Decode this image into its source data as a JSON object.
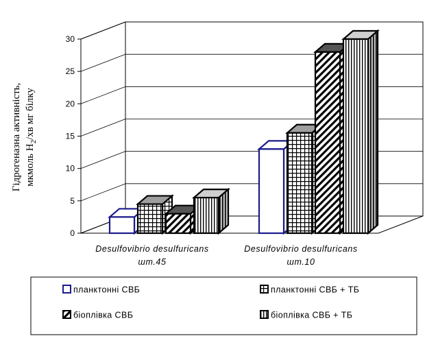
{
  "chart_data": {
    "type": "bar",
    "style": "3d-clustered-column",
    "categories": [
      {
        "line1": "Desulfovibrio desulfuricans",
        "line2": "шт.45"
      },
      {
        "line1": "Desulfovibrio desulfuricans",
        "line2": "шт.10"
      }
    ],
    "series": [
      {
        "name": "планктонні СВБ",
        "pattern": "solid-white",
        "border_color": "#1a1a8c",
        "values": [
          2.5,
          13
        ]
      },
      {
        "name": "планктонні СВБ + ТБ",
        "pattern": "grid",
        "border_color": "#000000",
        "values": [
          4.5,
          15.5
        ]
      },
      {
        "name": "біоплівка СВБ",
        "pattern": "diagonal",
        "border_color": "#000000",
        "values": [
          3,
          28
        ]
      },
      {
        "name": "біоплівка СВБ + ТБ",
        "pattern": "vertical-lines",
        "border_color": "#000000",
        "values": [
          5.5,
          30
        ]
      }
    ],
    "ylabel": {
      "line1": "Гідрогеназна активність,",
      "line2_prefix": "мкмоль Н",
      "line2_sub": "2",
      "line2_suffix": "/хв мг білку"
    },
    "yticks": [
      "0",
      "5",
      "10",
      "15",
      "20",
      "25",
      "30"
    ],
    "ylim": [
      0,
      30
    ],
    "grid": true,
    "legend_position": "bottom"
  }
}
